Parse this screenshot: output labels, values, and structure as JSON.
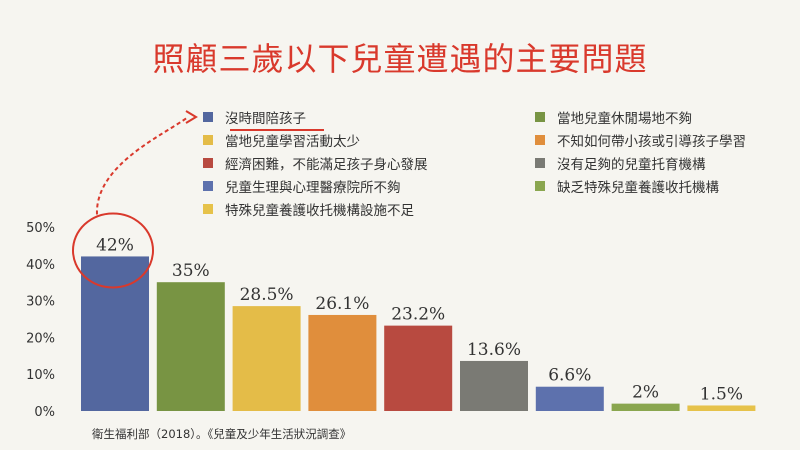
{
  "title": "照顧三歲以下兒童遭遇的主要問題",
  "source": "衛生福利部（2018）。《兒童及少年生活狀況調查》",
  "colors": {
    "accent": "#d9392c",
    "axis_text": "#333333"
  },
  "chart_data": {
    "type": "bar",
    "categories": [
      "沒時間陪孩子",
      "當地兒童休閒場地不夠",
      "當地兒童學習活動太少",
      "不知如何帶小孩或引導孩子學習",
      "經濟困難，不能滿足孩子身心發展",
      "沒有足夠的兒童托育機構",
      "兒童生理與心理醫療院所不夠",
      "缺乏特殊兒童養護收托機構",
      "特殊兒童養護收托機構設施不足"
    ],
    "values": [
      42,
      35,
      28.5,
      26.1,
      23.2,
      13.6,
      6.6,
      2,
      1.5
    ],
    "value_labels": [
      "42%",
      "35%",
      "28.5%",
      "26.1%",
      "23.2%",
      "13.6%",
      "6.6%",
      "2%",
      "1.5%"
    ],
    "bar_colors": [
      "#53679f",
      "#789443",
      "#e4bc48",
      "#e08e3c",
      "#b84a40",
      "#7a7a74",
      "#5d71ad",
      "#8aa64f",
      "#e6c24a"
    ],
    "ylim": [
      0,
      50
    ],
    "yticks": [
      "0%",
      "10%",
      "20%",
      "30%",
      "40%",
      "50%"
    ],
    "highlight_index": 0,
    "legend_placement": "top"
  }
}
